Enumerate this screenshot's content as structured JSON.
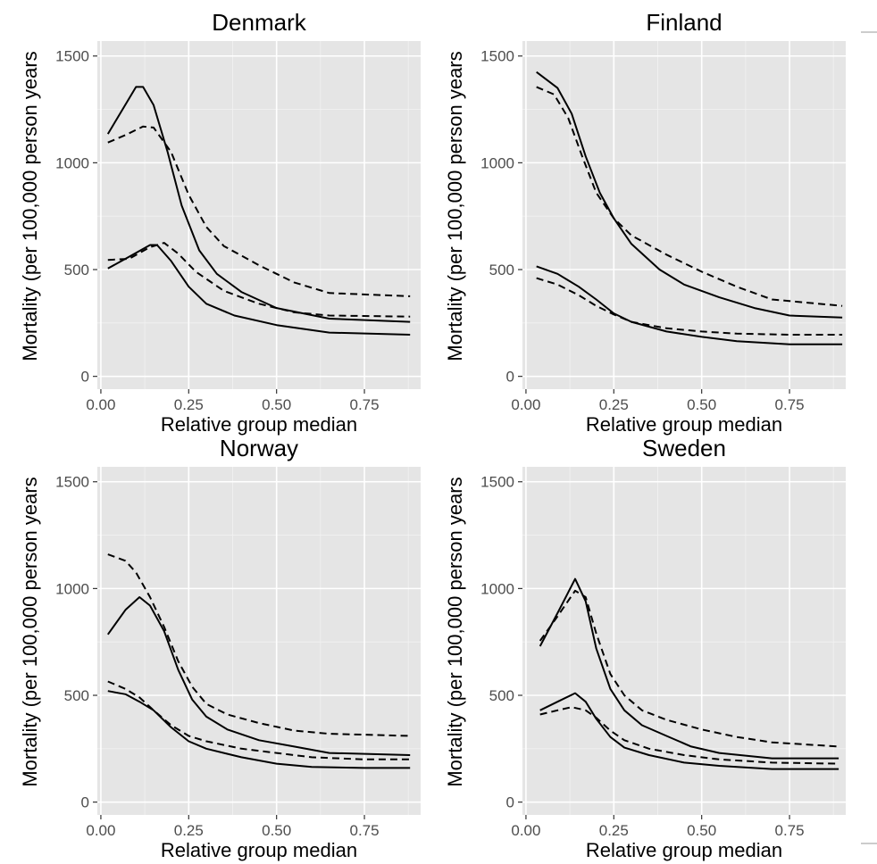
{
  "chart_data": [
    {
      "type": "line",
      "title": "Denmark",
      "xlabel": "Relative group median",
      "ylabel": "Mortality (per 100,000 person years",
      "xlim": [
        -0.01,
        0.91
      ],
      "ylim": [
        -60,
        1570
      ],
      "x_ticks": [
        "0.00",
        "0.25",
        "0.50",
        "0.75"
      ],
      "y_ticks": [
        "0",
        "500",
        "1000",
        "1500"
      ],
      "grid": true,
      "series": [
        {
          "style": "solid",
          "points": [
            [
              0.02,
              1135
            ],
            [
              0.1,
              1355
            ],
            [
              0.12,
              1355
            ],
            [
              0.15,
              1270
            ],
            [
              0.19,
              1050
            ],
            [
              0.23,
              800
            ],
            [
              0.28,
              590
            ],
            [
              0.33,
              480
            ],
            [
              0.4,
              395
            ],
            [
              0.5,
              320
            ],
            [
              0.65,
              270
            ],
            [
              0.88,
              255
            ]
          ]
        },
        {
          "style": "dashed",
          "points": [
            [
              0.02,
              1095
            ],
            [
              0.07,
              1130
            ],
            [
              0.12,
              1170
            ],
            [
              0.15,
              1165
            ],
            [
              0.2,
              1050
            ],
            [
              0.25,
              850
            ],
            [
              0.3,
              700
            ],
            [
              0.35,
              610
            ],
            [
              0.45,
              520
            ],
            [
              0.55,
              440
            ],
            [
              0.65,
              390
            ],
            [
              0.88,
              375
            ]
          ]
        },
        {
          "style": "solid",
          "points": [
            [
              0.02,
              505
            ],
            [
              0.08,
              560
            ],
            [
              0.14,
              615
            ],
            [
              0.16,
              615
            ],
            [
              0.2,
              540
            ],
            [
              0.25,
              420
            ],
            [
              0.3,
              340
            ],
            [
              0.38,
              285
            ],
            [
              0.5,
              240
            ],
            [
              0.65,
              205
            ],
            [
              0.88,
              195
            ]
          ]
        },
        {
          "style": "dashed",
          "points": [
            [
              0.02,
              545
            ],
            [
              0.08,
              550
            ],
            [
              0.14,
              605
            ],
            [
              0.18,
              625
            ],
            [
              0.22,
              575
            ],
            [
              0.27,
              490
            ],
            [
              0.35,
              400
            ],
            [
              0.45,
              340
            ],
            [
              0.55,
              300
            ],
            [
              0.65,
              285
            ],
            [
              0.88,
              280
            ]
          ]
        }
      ]
    },
    {
      "type": "line",
      "title": "Finland",
      "xlabel": "Relative group median",
      "ylabel": "Mortality (per 100,000 person years",
      "xlim": [
        -0.01,
        0.91
      ],
      "ylim": [
        -60,
        1570
      ],
      "x_ticks": [
        "0.00",
        "0.25",
        "0.50",
        "0.75"
      ],
      "y_ticks": [
        "0",
        "500",
        "1000",
        "1500"
      ],
      "grid": true,
      "series": [
        {
          "style": "solid",
          "points": [
            [
              0.03,
              1425
            ],
            [
              0.09,
              1350
            ],
            [
              0.13,
              1230
            ],
            [
              0.17,
              1030
            ],
            [
              0.21,
              860
            ],
            [
              0.25,
              740
            ],
            [
              0.3,
              620
            ],
            [
              0.38,
              500
            ],
            [
              0.45,
              430
            ],
            [
              0.55,
              370
            ],
            [
              0.65,
              320
            ],
            [
              0.75,
              285
            ],
            [
              0.9,
              275
            ]
          ]
        },
        {
          "style": "dashed",
          "points": [
            [
              0.03,
              1355
            ],
            [
              0.08,
              1320
            ],
            [
              0.12,
              1210
            ],
            [
              0.16,
              1030
            ],
            [
              0.2,
              860
            ],
            [
              0.25,
              740
            ],
            [
              0.3,
              660
            ],
            [
              0.4,
              570
            ],
            [
              0.5,
              490
            ],
            [
              0.6,
              420
            ],
            [
              0.7,
              360
            ],
            [
              0.8,
              345
            ],
            [
              0.9,
              330
            ]
          ]
        },
        {
          "style": "solid",
          "points": [
            [
              0.03,
              515
            ],
            [
              0.09,
              480
            ],
            [
              0.15,
              420
            ],
            [
              0.2,
              360
            ],
            [
              0.25,
              295
            ],
            [
              0.3,
              255
            ],
            [
              0.4,
              210
            ],
            [
              0.5,
              185
            ],
            [
              0.6,
              165
            ],
            [
              0.75,
              150
            ],
            [
              0.9,
              150
            ]
          ]
        },
        {
          "style": "dashed",
          "points": [
            [
              0.03,
              460
            ],
            [
              0.09,
              430
            ],
            [
              0.15,
              380
            ],
            [
              0.2,
              330
            ],
            [
              0.25,
              290
            ],
            [
              0.3,
              255
            ],
            [
              0.4,
              225
            ],
            [
              0.5,
              210
            ],
            [
              0.6,
              200
            ],
            [
              0.75,
              195
            ],
            [
              0.9,
              195
            ]
          ]
        }
      ]
    },
    {
      "type": "line",
      "title": "Norway",
      "xlabel": "Relative group median",
      "ylabel": "Mortality (per 100,000 person years",
      "xlim": [
        -0.01,
        0.91
      ],
      "ylim": [
        -60,
        1570
      ],
      "x_ticks": [
        "0.00",
        "0.25",
        "0.50",
        "0.75"
      ],
      "y_ticks": [
        "0",
        "500",
        "1000",
        "1500"
      ],
      "grid": true,
      "series": [
        {
          "style": "solid",
          "points": [
            [
              0.02,
              785
            ],
            [
              0.07,
              900
            ],
            [
              0.11,
              960
            ],
            [
              0.14,
              920
            ],
            [
              0.18,
              800
            ],
            [
              0.22,
              620
            ],
            [
              0.26,
              480
            ],
            [
              0.3,
              400
            ],
            [
              0.36,
              340
            ],
            [
              0.45,
              290
            ],
            [
              0.55,
              260
            ],
            [
              0.65,
              230
            ],
            [
              0.88,
              220
            ]
          ]
        },
        {
          "style": "dashed",
          "points": [
            [
              0.02,
              1160
            ],
            [
              0.07,
              1130
            ],
            [
              0.1,
              1075
            ],
            [
              0.14,
              960
            ],
            [
              0.18,
              820
            ],
            [
              0.22,
              660
            ],
            [
              0.26,
              540
            ],
            [
              0.3,
              460
            ],
            [
              0.36,
              410
            ],
            [
              0.45,
              370
            ],
            [
              0.55,
              335
            ],
            [
              0.65,
              320
            ],
            [
              0.88,
              310
            ]
          ]
        },
        {
          "style": "solid",
          "points": [
            [
              0.02,
              520
            ],
            [
              0.07,
              505
            ],
            [
              0.11,
              470
            ],
            [
              0.15,
              430
            ],
            [
              0.2,
              350
            ],
            [
              0.25,
              285
            ],
            [
              0.3,
              250
            ],
            [
              0.4,
              210
            ],
            [
              0.5,
              180
            ],
            [
              0.6,
              165
            ],
            [
              0.75,
              160
            ],
            [
              0.88,
              160
            ]
          ]
        },
        {
          "style": "dashed",
          "points": [
            [
              0.02,
              565
            ],
            [
              0.07,
              530
            ],
            [
              0.11,
              490
            ],
            [
              0.15,
              430
            ],
            [
              0.2,
              360
            ],
            [
              0.25,
              310
            ],
            [
              0.3,
              285
            ],
            [
              0.4,
              250
            ],
            [
              0.5,
              230
            ],
            [
              0.6,
              210
            ],
            [
              0.75,
              200
            ],
            [
              0.88,
              200
            ]
          ]
        }
      ]
    },
    {
      "type": "line",
      "title": "Sweden",
      "xlabel": "Relative group median",
      "ylabel": "Mortality (per 100,000 person years",
      "xlim": [
        -0.01,
        0.91
      ],
      "ylim": [
        -60,
        1570
      ],
      "x_ticks": [
        "0.00",
        "0.25",
        "0.50",
        "0.75"
      ],
      "y_ticks": [
        "0",
        "500",
        "1000",
        "1500"
      ],
      "grid": true,
      "series": [
        {
          "style": "solid",
          "points": [
            [
              0.04,
              730
            ],
            [
              0.09,
              885
            ],
            [
              0.14,
              1045
            ],
            [
              0.17,
              940
            ],
            [
              0.2,
              720
            ],
            [
              0.24,
              530
            ],
            [
              0.28,
              430
            ],
            [
              0.33,
              360
            ],
            [
              0.4,
              310
            ],
            [
              0.47,
              260
            ],
            [
              0.55,
              230
            ],
            [
              0.7,
              205
            ],
            [
              0.89,
              205
            ]
          ]
        },
        {
          "style": "dashed",
          "points": [
            [
              0.04,
              755
            ],
            [
              0.09,
              870
            ],
            [
              0.14,
              990
            ],
            [
              0.17,
              960
            ],
            [
              0.2,
              790
            ],
            [
              0.24,
              600
            ],
            [
              0.28,
              500
            ],
            [
              0.33,
              430
            ],
            [
              0.4,
              385
            ],
            [
              0.5,
              340
            ],
            [
              0.6,
              305
            ],
            [
              0.7,
              280
            ],
            [
              0.89,
              260
            ]
          ]
        },
        {
          "style": "solid",
          "points": [
            [
              0.04,
              430
            ],
            [
              0.09,
              470
            ],
            [
              0.14,
              510
            ],
            [
              0.17,
              470
            ],
            [
              0.2,
              390
            ],
            [
              0.24,
              305
            ],
            [
              0.28,
              255
            ],
            [
              0.35,
              220
            ],
            [
              0.45,
              185
            ],
            [
              0.55,
              170
            ],
            [
              0.7,
              155
            ],
            [
              0.89,
              155
            ]
          ]
        },
        {
          "style": "dashed",
          "points": [
            [
              0.04,
              410
            ],
            [
              0.09,
              430
            ],
            [
              0.13,
              445
            ],
            [
              0.17,
              430
            ],
            [
              0.2,
              395
            ],
            [
              0.24,
              335
            ],
            [
              0.28,
              290
            ],
            [
              0.35,
              250
            ],
            [
              0.45,
              220
            ],
            [
              0.55,
              200
            ],
            [
              0.7,
              185
            ],
            [
              0.89,
              180
            ]
          ]
        }
      ]
    }
  ]
}
